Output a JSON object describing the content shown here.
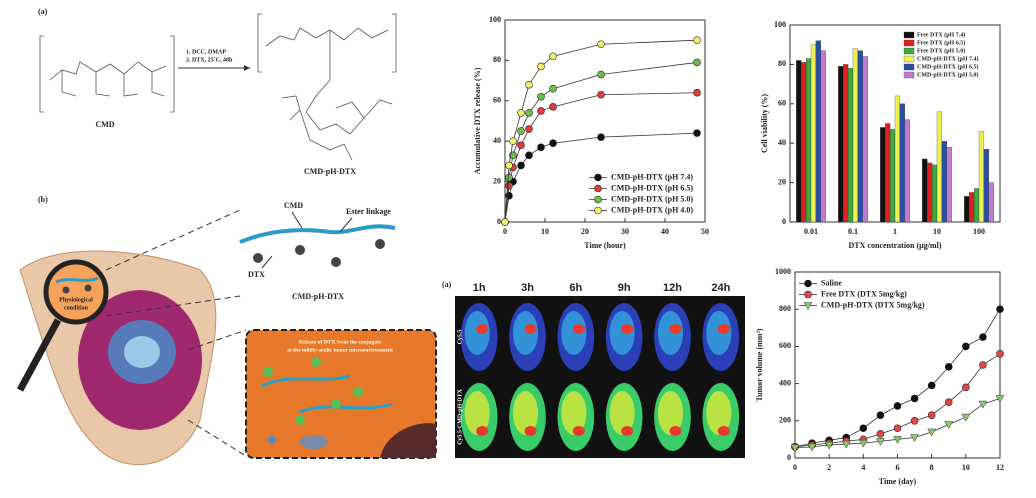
{
  "chart_data": [
    {
      "type": "line",
      "ylabel": "Accumulative DTX release (%)",
      "xlabel": "Time (hour)",
      "x": [
        0,
        1,
        2,
        4,
        6,
        9,
        12,
        24,
        48
      ],
      "xlim": [
        0,
        50
      ],
      "xticks": [
        0,
        10,
        20,
        30,
        40,
        50
      ],
      "ylim": [
        0,
        100
      ],
      "yticks": [
        0,
        20,
        40,
        60,
        80,
        100
      ],
      "legend": "lower right",
      "series": [
        {
          "name": "CMD-pH-DTX (pH 7.4)",
          "color": "#111111",
          "marker": "circle",
          "values": [
            0,
            13,
            20,
            28,
            33,
            37,
            39,
            42,
            44
          ]
        },
        {
          "name": "CMD-pH-DTX (pH 6.5)",
          "color": "#e03c3c",
          "marker": "circle",
          "values": [
            0,
            18,
            27,
            38,
            46,
            55,
            57,
            63,
            64
          ]
        },
        {
          "name": "CMD-pH-DTX (pH 5.0)",
          "color": "#6cbf4a",
          "marker": "circle",
          "values": [
            0,
            22,
            33,
            45,
            54,
            62,
            66,
            73,
            79
          ]
        },
        {
          "name": "CMD-pH-DTX (pH 4.0)",
          "color": "#f2f26a",
          "marker": "circle",
          "values": [
            0,
            28,
            40,
            54,
            68,
            77,
            82,
            88,
            90
          ]
        }
      ]
    },
    {
      "type": "bar",
      "ylabel": "Cell viability (%)",
      "xlabel": "DTX concentration (μg/ml)",
      "categories": [
        "0.01",
        "0.1",
        "1",
        "10",
        "100"
      ],
      "ylim": [
        0,
        100
      ],
      "yticks": [
        0,
        20,
        40,
        60,
        80,
        100
      ],
      "legend": "upper right",
      "series": [
        {
          "name": "Free DTX (pH 7.4)",
          "color": "#111111",
          "values": [
            82,
            79,
            48,
            32,
            13
          ]
        },
        {
          "name": "Free DTX (pH 6.5)",
          "color": "#e02020",
          "values": [
            81,
            80,
            50,
            30,
            15
          ]
        },
        {
          "name": "Free DTX (pH 5.0)",
          "color": "#3caa3c",
          "values": [
            83,
            78,
            47,
            29,
            17
          ]
        },
        {
          "name": "CMD-pH-DTX (pH 7.4)",
          "color": "#f0f050",
          "values": [
            90,
            88,
            64,
            56,
            46
          ]
        },
        {
          "name": "CMD-pH-DTX (pH 6.5)",
          "color": "#2a4fa8",
          "values": [
            92,
            87,
            60,
            41,
            37
          ]
        },
        {
          "name": "CMD-pH-DTX (pH 5.0)",
          "color": "#c07ad0",
          "values": [
            87,
            84,
            52,
            38,
            20
          ]
        }
      ]
    },
    {
      "type": "line",
      "ylabel": "Tumor volume (mm³)",
      "xlabel": "Time (day)",
      "x": [
        0,
        1,
        2,
        3,
        4,
        5,
        6,
        7,
        8,
        9,
        10,
        11,
        12
      ],
      "xlim": [
        0,
        12
      ],
      "xticks": [
        0,
        2,
        4,
        6,
        8,
        10,
        12
      ],
      "ylim": [
        0,
        1000
      ],
      "yticks": [
        0,
        200,
        400,
        600,
        800,
        1000
      ],
      "legend": "upper left",
      "series": [
        {
          "name": "Saline",
          "color": "#111111",
          "marker": "circle",
          "values": [
            60,
            80,
            95,
            110,
            160,
            230,
            280,
            320,
            390,
            490,
            600,
            650,
            800
          ]
        },
        {
          "name": "Free DTX (DTX 5mg/kg)",
          "color": "#e04848",
          "marker": "circle",
          "values": [
            60,
            70,
            80,
            90,
            100,
            130,
            160,
            200,
            230,
            300,
            380,
            500,
            560
          ]
        },
        {
          "name": "CMD-pH-DTX (DTX 5mg/kg)",
          "color": "#8cc86a",
          "marker": "triangle",
          "values": [
            55,
            60,
            70,
            75,
            80,
            90,
            100,
            110,
            140,
            180,
            220,
            290,
            320
          ]
        }
      ]
    }
  ],
  "synthesis": {
    "panel_label": "(a)",
    "reactant": "CMD",
    "conditions": [
      "1.  DCC, DMAP",
      "2.  DTX, 25˚C, 48h"
    ],
    "product": "CMD-pH-DTX"
  },
  "mechanism": {
    "panel_label": "(b)",
    "cmd": "CMD",
    "linkage": "Ester linkage",
    "drug": "DTX",
    "conjugate": "CMD-pH-DTX",
    "condition": [
      "Physiological",
      "condition"
    ],
    "release_note": [
      "Release of DTX from the conjugate",
      "at the mildly acidic tumor microenvironment"
    ]
  },
  "imaging": {
    "panel_label": "(a)",
    "times": [
      "1h",
      "3h",
      "6h",
      "9h",
      "12h",
      "24h"
    ],
    "rows": [
      "Cy5.5",
      "Cy5.5-CMD-pH-DTX"
    ]
  }
}
